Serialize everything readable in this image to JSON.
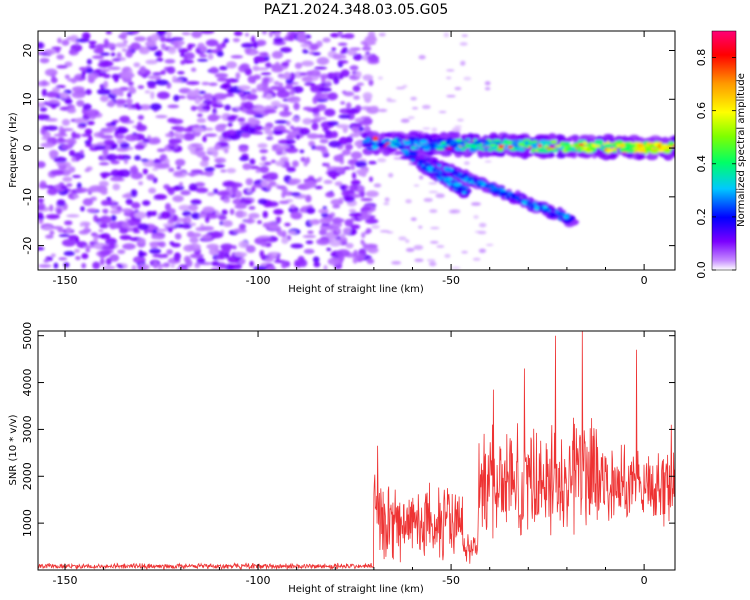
{
  "title": "PAZ1.2024.348.03.05.G05",
  "chart_data": [
    {
      "type": "heatmap",
      "xlabel": "Height of straight line (km)",
      "ylabel": "Frequency (Hz)",
      "xlim": [
        -157,
        8
      ],
      "ylim": [
        -25,
        24
      ],
      "xticks": [
        -150,
        -100,
        -50,
        0
      ],
      "yticks": [
        -20,
        -10,
        0,
        10,
        20
      ],
      "noise_region_x": [
        -157,
        -70
      ],
      "signal_traces": [
        {
          "x_start": -72,
          "x_end": 8,
          "freq_start": 1,
          "freq_end": 0,
          "amplitude": "high"
        },
        {
          "x_start": -62,
          "x_end": -18,
          "freq_start": -1,
          "freq_end": -15,
          "amplitude": "medium"
        },
        {
          "x_start": -58,
          "x_end": -46,
          "freq_start": -3,
          "freq_end": -9,
          "amplitude": "medium"
        }
      ],
      "colorbar": {
        "label": "Normalized spectral amplitude",
        "range": [
          0,
          0.9
        ],
        "ticks": [
          "0.0",
          "0.2",
          "0.4",
          "0.6",
          "0.8"
        ],
        "colormap": "rainbow"
      }
    },
    {
      "type": "line",
      "xlabel": "Height of straight line (km)",
      "ylabel": "SNR (10 * v/v)",
      "xlim": [
        -157,
        8
      ],
      "ylim": [
        0,
        5100
      ],
      "xticks": [
        -150,
        -100,
        -50,
        0
      ],
      "yticks": [
        1000,
        2000,
        3000,
        4000,
        5000
      ],
      "color": "#ee3333",
      "segments": [
        {
          "x_range": [
            -157,
            -70
          ],
          "level": 80,
          "spread": 70
        },
        {
          "x_range": [
            -70,
            -68
          ],
          "level": 1500,
          "spread": 1200
        },
        {
          "x_range": [
            -68,
            -47
          ],
          "level": 1000,
          "spread": 900
        },
        {
          "x_range": [
            -47,
            -43
          ],
          "level": 450,
          "spread": 350
        },
        {
          "x_range": [
            -43,
            -20
          ],
          "level": 1900,
          "spread": 1400
        },
        {
          "x_range": [
            -20,
            -12
          ],
          "level": 2100,
          "spread": 1700
        },
        {
          "x_range": [
            -12,
            8
          ],
          "level": 1800,
          "spread": 1000
        }
      ],
      "peaks": [
        {
          "x": -69,
          "y": 2650
        },
        {
          "x": -39,
          "y": 3850
        },
        {
          "x": -31,
          "y": 4300
        },
        {
          "x": -23,
          "y": 5000
        },
        {
          "x": -16,
          "y": 5100
        },
        {
          "x": -2,
          "y": 4700
        },
        {
          "x": 7,
          "y": 3100
        }
      ]
    }
  ]
}
